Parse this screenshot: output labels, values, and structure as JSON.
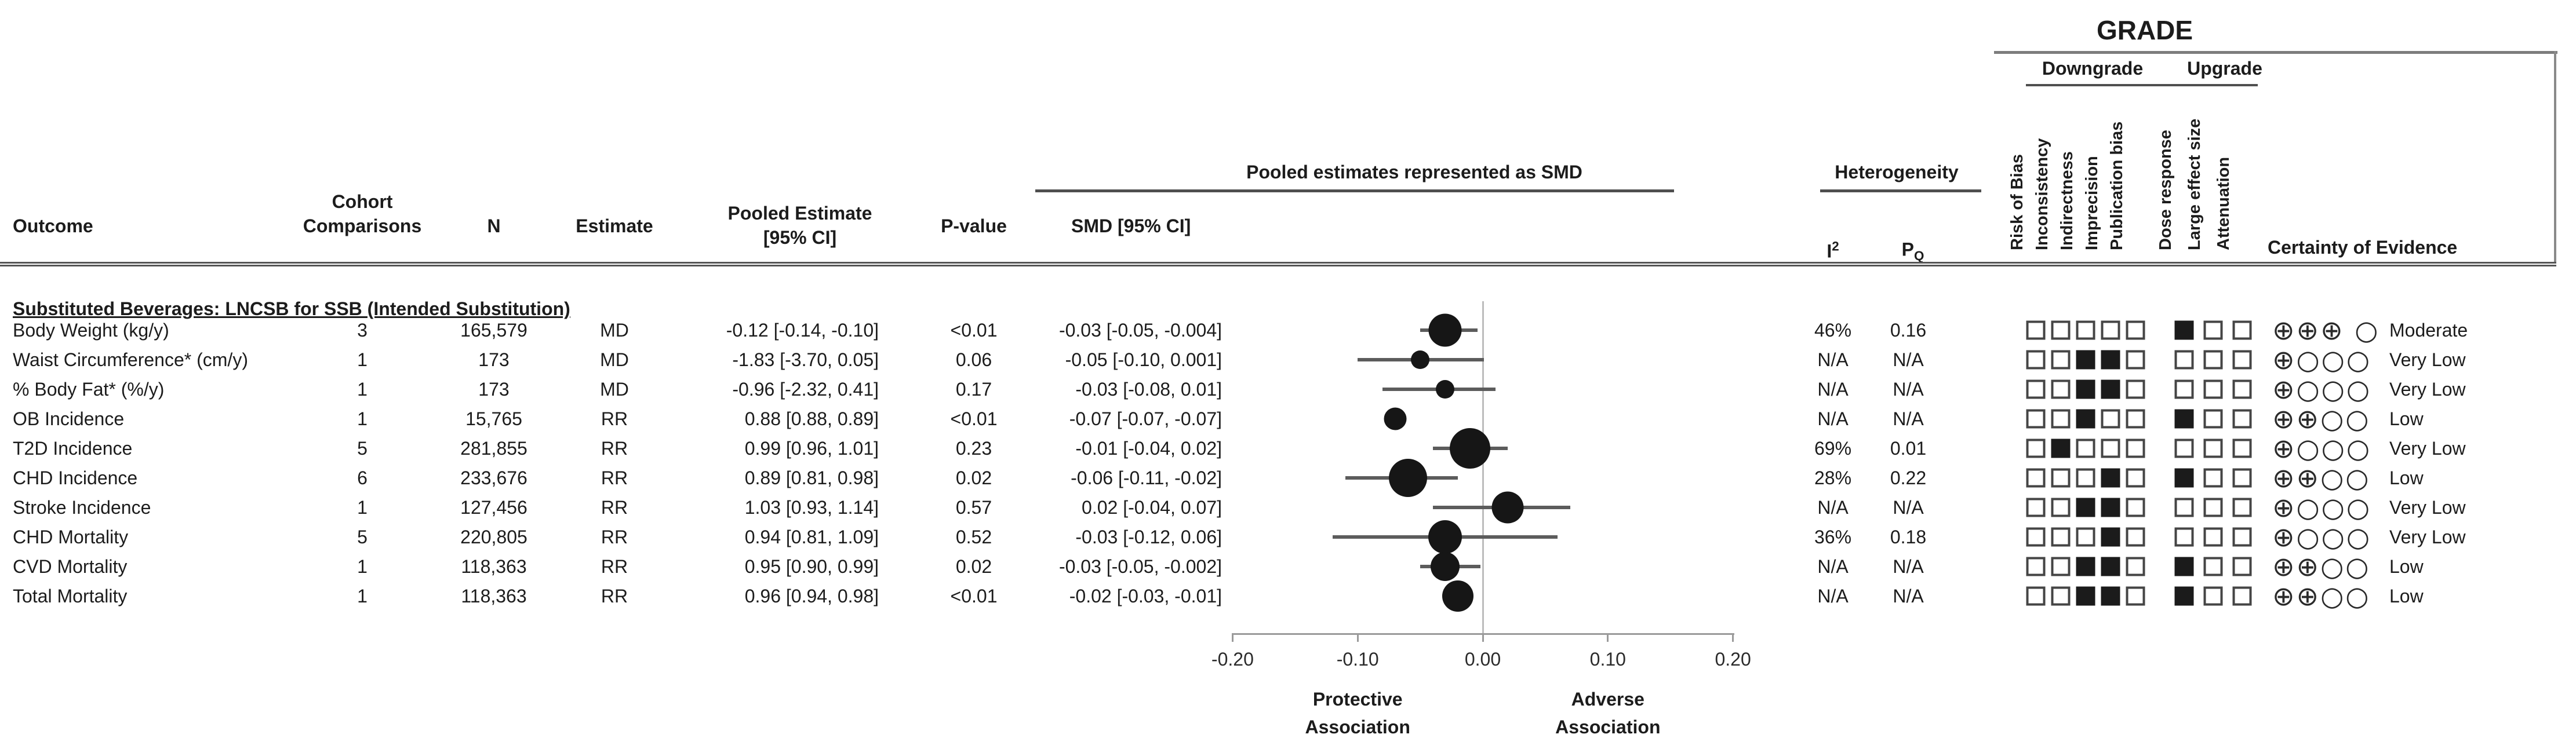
{
  "columns": {
    "outcome": "Outcome",
    "cohort_line1": "Cohort",
    "cohort_line2": "Comparisons",
    "n": "N",
    "estimate": "Estimate",
    "pooled_line1": "Pooled Estimate",
    "pooled_line2": "[95% CI]",
    "pvalue": "P-value",
    "smd": "SMD [95% CI]",
    "pooled_group": "Pooled estimates represented as SMD",
    "het_group": "Heterogeneity",
    "i2": "I",
    "i2_sup": "2",
    "pq": "P",
    "pq_sub": "Q"
  },
  "grade": {
    "title": "GRADE",
    "downgrade_header": "Downgrade",
    "upgrade_header": "Upgrade",
    "downgrade_criteria": [
      "Risk of Bias",
      "Inconsistency",
      "Indirectness",
      "Imprecision",
      "Publication bias"
    ],
    "upgrade_criteria": [
      "Dose response",
      "Large effect size",
      "Attenuation"
    ],
    "certainty_header": "Certainty of Evidence"
  },
  "section_header": "Substituted Beverages: LNCSB for SSB (Intended Substitution)",
  "rows": [
    {
      "outcome": "Body Weight (kg/y)",
      "comparisons": "3",
      "n": "165,579",
      "estimate": "MD",
      "pooled": "-0.12 [-0.14, -0.10]",
      "pvalue": "<0.01",
      "smd_text": "-0.03 [-0.05, -0.004]",
      "i2": "46%",
      "pq": "0.16",
      "downgrade": [
        0,
        0,
        0,
        0,
        0
      ],
      "upgrade": [
        1,
        0,
        0
      ],
      "certainty_symbols": "⊕⊕⊕ ○",
      "certainty": "Moderate"
    },
    {
      "outcome": "Waist Circumference* (cm/y)",
      "comparisons": "1",
      "n": "173",
      "estimate": "MD",
      "pooled": "-1.83 [-3.70, 0.05]",
      "pvalue": "0.06",
      "smd_text": "-0.05 [-0.10, 0.001]",
      "i2": "N/A",
      "pq": "N/A",
      "downgrade": [
        0,
        0,
        1,
        1,
        0
      ],
      "upgrade": [
        0,
        0,
        0
      ],
      "certainty_symbols": "⊕○○○",
      "certainty": "Very Low"
    },
    {
      "outcome": "% Body Fat* (%/y)",
      "comparisons": "1",
      "n": "173",
      "estimate": "MD",
      "pooled": "-0.96 [-2.32, 0.41]",
      "pvalue": "0.17",
      "smd_text": "-0.03 [-0.08, 0.01]",
      "i2": "N/A",
      "pq": "N/A",
      "downgrade": [
        0,
        0,
        1,
        1,
        0
      ],
      "upgrade": [
        0,
        0,
        0
      ],
      "certainty_symbols": "⊕○○○",
      "certainty": "Very Low"
    },
    {
      "outcome": "OB Incidence",
      "comparisons": "1",
      "n": "15,765",
      "estimate": "RR",
      "pooled": "0.88 [0.88, 0.89]",
      "pvalue": "<0.01",
      "smd_text": "-0.07 [-0.07, -0.07]",
      "i2": "N/A",
      "pq": "N/A",
      "downgrade": [
        0,
        0,
        1,
        0,
        0
      ],
      "upgrade": [
        1,
        0,
        0
      ],
      "certainty_symbols": "⊕⊕○○",
      "certainty": "Low"
    },
    {
      "outcome": "T2D Incidence",
      "comparisons": "5",
      "n": "281,855",
      "estimate": "RR",
      "pooled": "0.99 [0.96, 1.01]",
      "pvalue": "0.23",
      "smd_text": "-0.01 [-0.04, 0.02]",
      "i2": "69%",
      "pq": "0.01",
      "downgrade": [
        0,
        1,
        0,
        0,
        0
      ],
      "upgrade": [
        0,
        0,
        0
      ],
      "certainty_symbols": "⊕○○○",
      "certainty": "Very Low"
    },
    {
      "outcome": "CHD Incidence",
      "comparisons": "6",
      "n": "233,676",
      "estimate": "RR",
      "pooled": "0.89 [0.81, 0.98]",
      "pvalue": "0.02",
      "smd_text": "-0.06 [-0.11, -0.02]",
      "i2": "28%",
      "pq": "0.22",
      "downgrade": [
        0,
        0,
        0,
        1,
        0
      ],
      "upgrade": [
        1,
        0,
        0
      ],
      "certainty_symbols": "⊕⊕○○",
      "certainty": "Low"
    },
    {
      "outcome": "Stroke Incidence",
      "comparisons": "1",
      "n": "127,456",
      "estimate": "RR",
      "pooled": "1.03 [0.93, 1.14]",
      "pvalue": "0.57",
      "smd_text": "0.02 [-0.04, 0.07]",
      "i2": "N/A",
      "pq": "N/A",
      "downgrade": [
        0,
        0,
        1,
        1,
        0
      ],
      "upgrade": [
        0,
        0,
        0
      ],
      "certainty_symbols": "⊕○○○",
      "certainty": "Very Low"
    },
    {
      "outcome": "CHD Mortality",
      "comparisons": "5",
      "n": "220,805",
      "estimate": "RR",
      "pooled": "0.94 [0.81, 1.09]",
      "pvalue": "0.52",
      "smd_text": "-0.03 [-0.12, 0.06]",
      "i2": "36%",
      "pq": "0.18",
      "downgrade": [
        0,
        0,
        0,
        1,
        0
      ],
      "upgrade": [
        0,
        0,
        0
      ],
      "certainty_symbols": "⊕○○○",
      "certainty": "Very Low"
    },
    {
      "outcome": "CVD Mortality",
      "comparisons": "1",
      "n": "118,363",
      "estimate": "RR",
      "pooled": "0.95 [0.90, 0.99]",
      "pvalue": "0.02",
      "smd_text": "-0.03 [-0.05, -0.002]",
      "i2": "N/A",
      "pq": "N/A",
      "downgrade": [
        0,
        0,
        1,
        1,
        0
      ],
      "upgrade": [
        1,
        0,
        0
      ],
      "certainty_symbols": "⊕⊕○○",
      "certainty": "Low"
    },
    {
      "outcome": "Total Mortality",
      "comparisons": "1",
      "n": "118,363",
      "estimate": "RR",
      "pooled": "0.96 [0.94, 0.98]",
      "pvalue": "<0.01",
      "smd_text": "-0.02 [-0.03, -0.01]",
      "i2": "N/A",
      "pq": "N/A",
      "downgrade": [
        0,
        0,
        1,
        1,
        0
      ],
      "upgrade": [
        1,
        0,
        0
      ],
      "certainty_symbols": "⊕⊕○○",
      "certainty": "Low"
    }
  ],
  "chart_data": {
    "type": "scatter",
    "subtype": "forest-plot",
    "title": "Pooled estimates represented as SMD",
    "xlabel_negative": [
      "Protective",
      "Association"
    ],
    "xlabel_positive": [
      "Adverse",
      "Association"
    ],
    "xlim": [
      -0.2,
      0.2
    ],
    "zero_line": 0.0,
    "grid": false,
    "x_ticks": [
      -0.2,
      -0.1,
      0.0,
      0.1,
      0.2
    ],
    "x_tick_labels": [
      "-0.20",
      "-0.10",
      "0.00",
      "0.10",
      "0.20"
    ],
    "points": [
      {
        "label": "Body Weight (kg/y)",
        "smd": -0.03,
        "ci": [
          -0.05,
          -0.004
        ],
        "marker_px": 57
      },
      {
        "label": "Waist Circumference* (cm/y)",
        "smd": -0.05,
        "ci": [
          -0.1,
          0.001
        ],
        "marker_px": 32
      },
      {
        "label": "% Body Fat* (%/y)",
        "smd": -0.03,
        "ci": [
          -0.08,
          0.01
        ],
        "marker_px": 32
      },
      {
        "label": "OB Incidence",
        "smd": -0.07,
        "ci": [
          -0.07,
          -0.07
        ],
        "marker_px": 39
      },
      {
        "label": "T2D Incidence",
        "smd": -0.01,
        "ci": [
          -0.04,
          0.02
        ],
        "marker_px": 70
      },
      {
        "label": "CHD Incidence",
        "smd": -0.06,
        "ci": [
          -0.11,
          -0.02
        ],
        "marker_px": 66
      },
      {
        "label": "Stroke Incidence",
        "smd": 0.02,
        "ci": [
          -0.04,
          0.07
        ],
        "marker_px": 55
      },
      {
        "label": "CHD Mortality",
        "smd": -0.03,
        "ci": [
          -0.12,
          0.06
        ],
        "marker_px": 58
      },
      {
        "label": "CVD Mortality",
        "smd": -0.03,
        "ci": [
          -0.05,
          -0.002
        ],
        "marker_px": 50
      },
      {
        "label": "Total Mortality",
        "smd": -0.02,
        "ci": [
          -0.03,
          -0.01
        ],
        "marker_px": 54
      }
    ]
  },
  "colors": {
    "text": "#1c1c1c",
    "marker": "#161616",
    "ci_line": "#5c5c5c",
    "zero_line": "#bcbcbc",
    "axis": "#9a9a9a",
    "rule": "#555555"
  }
}
